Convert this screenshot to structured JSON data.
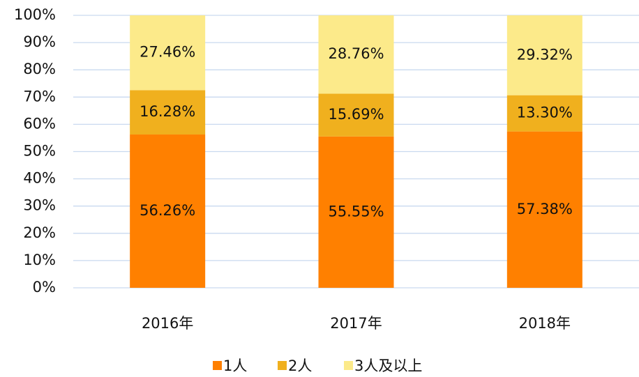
{
  "chart_data": {
    "type": "stacked_bar",
    "categories": [
      "2016年",
      "2017年",
      "2018年"
    ],
    "series": [
      {
        "name": "1人",
        "color": "#ff8000",
        "values": [
          56.26,
          55.55,
          57.38
        ],
        "value_labels": [
          "56.26%",
          "55.55%",
          "57.38%"
        ]
      },
      {
        "name": "2人",
        "color": "#f0b01e",
        "values": [
          16.28,
          15.69,
          13.3
        ],
        "value_labels": [
          "16.28%",
          "15.69%",
          "13.30%"
        ]
      },
      {
        "name": "3人及以上",
        "color": "#fcea8a",
        "values": [
          27.46,
          28.76,
          29.32
        ],
        "value_labels": [
          "27.46%",
          "28.76%",
          "29.32%"
        ]
      }
    ],
    "ylim": [
      0,
      100
    ],
    "yticks": [
      {
        "value": 0,
        "label": "0%"
      },
      {
        "value": 10,
        "label": "10%"
      },
      {
        "value": 20,
        "label": "20%"
      },
      {
        "value": 30,
        "label": "30%"
      },
      {
        "value": 40,
        "label": "40%"
      },
      {
        "value": 50,
        "label": "50%"
      },
      {
        "value": 60,
        "label": "60%"
      },
      {
        "value": 70,
        "label": "70%"
      },
      {
        "value": 80,
        "label": "80%"
      },
      {
        "value": 90,
        "label": "90%"
      },
      {
        "value": 100,
        "label": "100%"
      }
    ],
    "grid": true,
    "legend": "bottom"
  }
}
